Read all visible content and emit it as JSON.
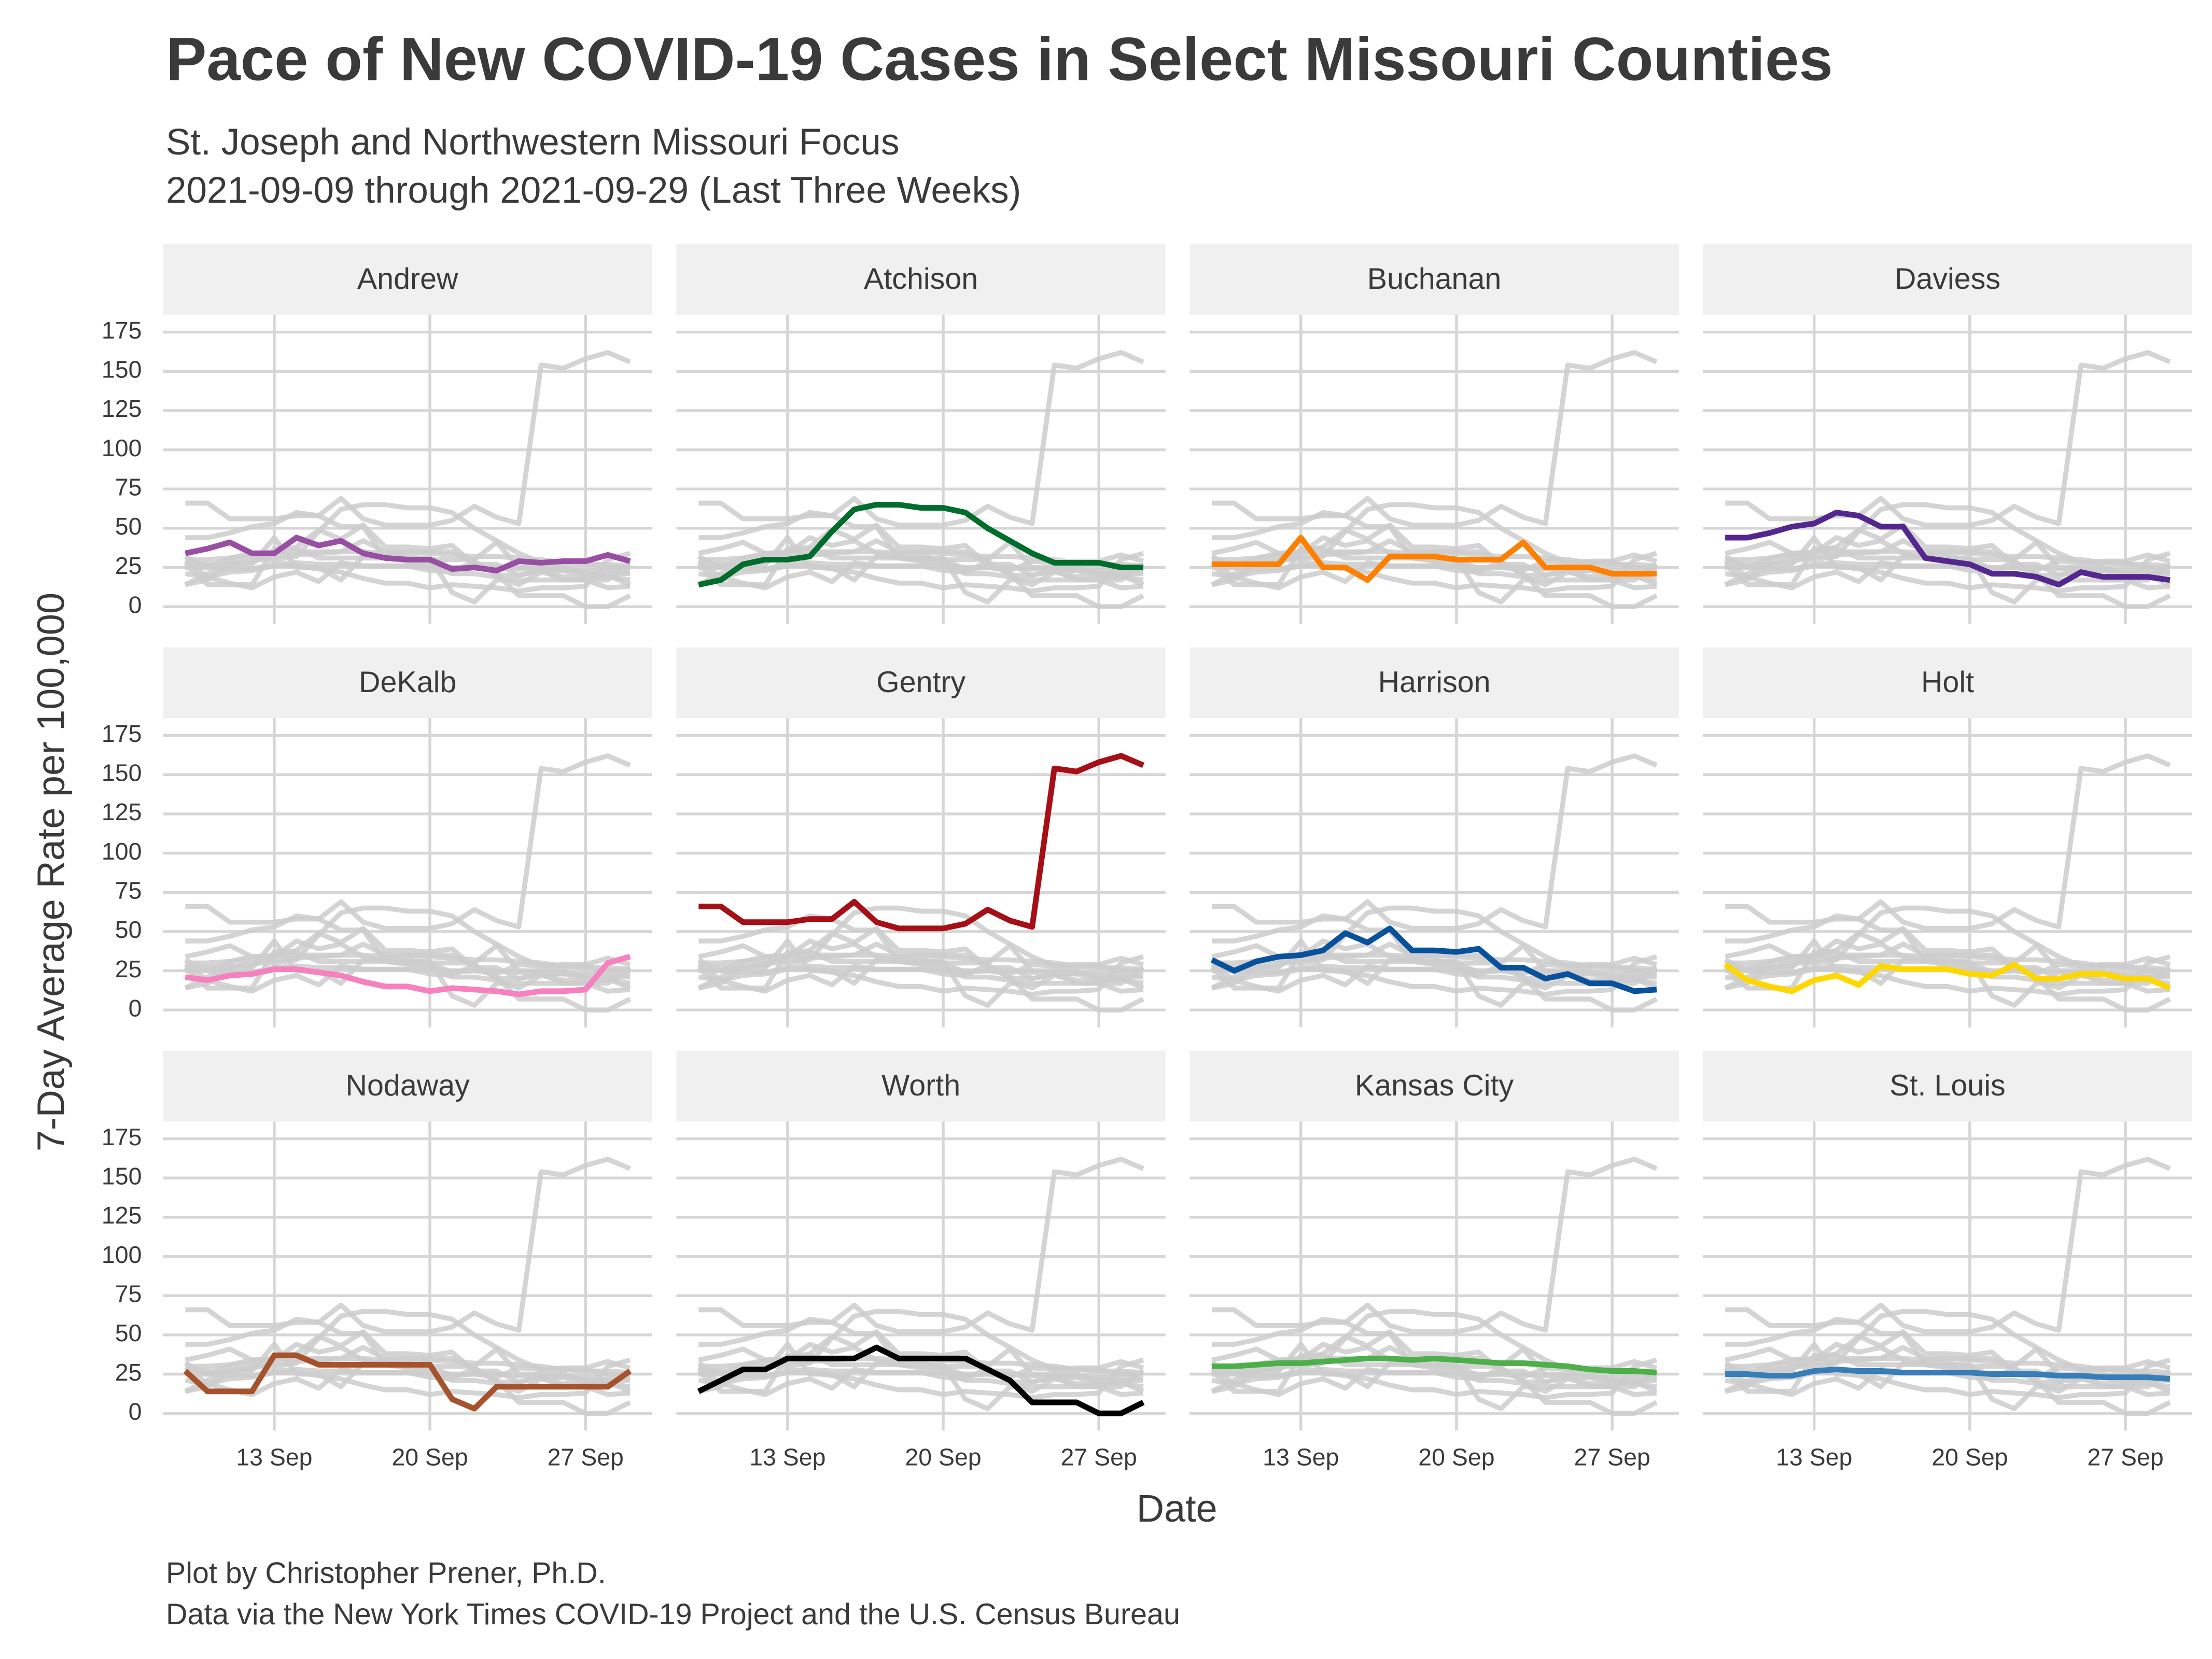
{
  "chart_data": {
    "type": "line",
    "title": "Pace of New COVID-19 Cases in Select Missouri Counties",
    "subtitle": [
      "St. Joseph and Northwestern Missouri Focus",
      "2021-09-09 through 2021-09-29 (Last Three Weeks)"
    ],
    "x_label": "Date",
    "y_label": "7-Day Average Rate per 100,000",
    "caption": [
      "Plot by Christopher Prener, Ph.D.",
      "Data via the New York Times COVID-19 Project and the U.S. Census Bureau"
    ],
    "background_color": "#cccccc",
    "grid": true,
    "x": [
      9,
      10,
      11,
      12,
      13,
      14,
      15,
      16,
      17,
      18,
      19,
      20,
      21,
      22,
      23,
      24,
      25,
      26,
      27,
      28,
      29
    ],
    "xlim": [
      8,
      30
    ],
    "xticks": [
      {
        "value": 13,
        "label": "13 Sep"
      },
      {
        "value": 20,
        "label": "20 Sep"
      },
      {
        "value": 27,
        "label": "27 Sep"
      }
    ],
    "ylim": [
      -11,
      186
    ],
    "yticks": [
      0,
      25,
      50,
      75,
      100,
      125,
      150,
      175
    ],
    "series": [
      {
        "name": "Andrew",
        "color": "#984ea3",
        "values": [
          34,
          37,
          41,
          34,
          34,
          44,
          39,
          42,
          34,
          31,
          30,
          30,
          24,
          25,
          23,
          29,
          28,
          29,
          29,
          33,
          29
        ]
      },
      {
        "name": "Atchison",
        "color": "#006d2c",
        "values": [
          14,
          17,
          27,
          30,
          30,
          32,
          48,
          62,
          65,
          65,
          63,
          63,
          60,
          50,
          42,
          34,
          28,
          28,
          28,
          25,
          25
        ]
      },
      {
        "name": "Buchanan",
        "color": "#ff7f00",
        "values": [
          27,
          27,
          27,
          27,
          44,
          25,
          25,
          17,
          32,
          32,
          32,
          30,
          30,
          30,
          41,
          25,
          25,
          25,
          21,
          21,
          21
        ]
      },
      {
        "name": "Daviess",
        "color": "#54278f",
        "values": [
          44,
          44,
          47,
          51,
          53,
          60,
          58,
          51,
          51,
          31,
          29,
          27,
          21,
          21,
          19,
          14,
          22,
          19,
          19,
          19,
          17
        ]
      },
      {
        "name": "DeKalb",
        "color": "#f781bf",
        "values": [
          21,
          19,
          22,
          23,
          26,
          26,
          24,
          22,
          18,
          15,
          15,
          12,
          14,
          13,
          12,
          10,
          12,
          12,
          13,
          30,
          34
        ]
      },
      {
        "name": "Gentry",
        "color": "#a50f15",
        "values": [
          66,
          66,
          56,
          56,
          56,
          58,
          58,
          69,
          56,
          52,
          52,
          52,
          55,
          64,
          57,
          53,
          154,
          152,
          158,
          162,
          156
        ]
      },
      {
        "name": "Harrison",
        "color": "#08519c",
        "values": [
          32,
          25,
          31,
          34,
          35,
          38,
          49,
          43,
          52,
          38,
          38,
          37,
          39,
          27,
          27,
          20,
          23,
          17,
          17,
          12,
          13
        ]
      },
      {
        "name": "Holt",
        "color": "#ffd700",
        "values": [
          29,
          19,
          15,
          12,
          19,
          22,
          16,
          28,
          26,
          26,
          26,
          23,
          22,
          29,
          20,
          20,
          23,
          23,
          20,
          20,
          14
        ]
      },
      {
        "name": "Nodaway",
        "color": "#a6522c",
        "values": [
          27,
          14,
          14,
          14,
          37,
          37,
          31,
          31,
          31,
          31,
          31,
          31,
          9,
          3,
          17,
          17,
          17,
          17,
          17,
          17,
          27
        ]
      },
      {
        "name": "Worth",
        "color": "#000000",
        "values": [
          14,
          21,
          28,
          28,
          35,
          35,
          35,
          35,
          42,
          35,
          35,
          35,
          35,
          28,
          21,
          7,
          7,
          7,
          0,
          0,
          7
        ]
      },
      {
        "name": "Kansas City",
        "color": "#4daf4a",
        "values": [
          30,
          30,
          31,
          32,
          32,
          33,
          34,
          35,
          35,
          34,
          35,
          34,
          33,
          32,
          32,
          31,
          30,
          28,
          27,
          27,
          26
        ]
      },
      {
        "name": "St. Louis",
        "color": "#377eb8",
        "values": [
          25,
          25,
          24,
          24,
          27,
          28,
          27,
          27,
          26,
          26,
          26,
          26,
          25,
          25,
          25,
          24,
          24,
          23,
          23,
          23,
          22
        ]
      }
    ]
  }
}
